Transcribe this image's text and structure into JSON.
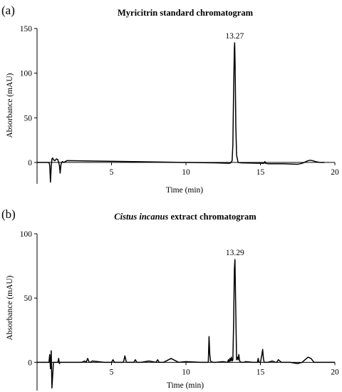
{
  "chart_data": [
    {
      "panel_label": "(a)",
      "type": "line",
      "title": "Myricitrin standard chromatogram",
      "title_italic": "",
      "title_rest": "",
      "xlabel": "Time (min)",
      "ylabel": "Absorbance (mAU)",
      "xlim": [
        0,
        20
      ],
      "ylim": [
        -24,
        150
      ],
      "xticks": [
        5,
        10,
        15,
        20
      ],
      "yticks": [
        0,
        50,
        100,
        150
      ],
      "grid": false,
      "peak_labels": [
        {
          "x": 13.27,
          "y": 134,
          "text": "13.27"
        }
      ],
      "series": [
        {
          "x": [
            0,
            0.5,
            0.7,
            0.8,
            0.85,
            0.9,
            0.95,
            1.0,
            1.05,
            1.1,
            1.2,
            1.3,
            1.4,
            1.5,
            1.55,
            1.6,
            1.65,
            1.7,
            1.8,
            2.0,
            4.0,
            6.0,
            8.0,
            10.0,
            12.0,
            12.9,
            13.0,
            13.1,
            13.15,
            13.2,
            13.25,
            13.27,
            13.3,
            13.35,
            13.4,
            13.5,
            13.7,
            15.0,
            15.25,
            15.3,
            15.35,
            15.5,
            16.5,
            17.5,
            17.8,
            18.0,
            18.2,
            18.35,
            18.5,
            18.7,
            19.0,
            19.3
          ],
          "y": [
            0,
            0,
            0,
            0,
            -3,
            -22,
            -5,
            4,
            5,
            3,
            2,
            4,
            3,
            -3,
            -12,
            -3,
            0,
            1,
            0,
            2,
            1.5,
            1.0,
            0.5,
            0,
            -0.5,
            -1,
            -0.5,
            2,
            20,
            80,
            128,
            134,
            110,
            40,
            8,
            0,
            -0.5,
            -1,
            -1,
            1,
            -1,
            -1.5,
            -1.5,
            -2,
            -1,
            0.5,
            2,
            2.5,
            2,
            1,
            0,
            0
          ]
        }
      ]
    },
    {
      "panel_label": "(b)",
      "type": "line",
      "title": "",
      "title_italic": "Cistus incanus",
      "title_rest": " extract chromatogram",
      "xlabel": "Time (min)",
      "ylabel": "Absorbance (mAU)",
      "xlim": [
        0,
        20
      ],
      "ylim": [
        -22,
        100
      ],
      "xticks": [
        5,
        10,
        15,
        20
      ],
      "yticks": [
        0,
        50,
        100
      ],
      "grid": false,
      "peak_labels": [
        {
          "x": 13.29,
          "y": 80,
          "text": "13.29"
        }
      ],
      "series": [
        {
          "x": [
            0,
            0.6,
            0.8,
            0.85,
            0.9,
            0.95,
            1.0,
            1.1,
            1.3,
            1.4,
            1.45,
            1.5,
            1.55,
            1.7,
            2.0,
            2.5,
            3.0,
            3.2,
            3.3,
            3.4,
            3.5,
            3.6,
            3.7,
            4.5,
            5.0,
            5.1,
            5.2,
            5.5,
            5.8,
            5.9,
            6.0,
            6.3,
            6.5,
            6.6,
            6.7,
            7.0,
            7.5,
            8.0,
            8.1,
            8.2,
            8.5,
            9.0,
            9.5,
            10.0,
            11.0,
            11.5,
            11.55,
            11.6,
            11.65,
            11.7,
            11.8,
            12.0,
            12.5,
            12.8,
            12.85,
            12.9,
            12.95,
            13.0,
            13.05,
            13.1,
            13.15,
            13.2,
            13.25,
            13.29,
            13.33,
            13.4,
            13.45,
            13.5,
            13.55,
            13.6,
            13.7,
            13.9,
            14.0,
            14.5,
            14.8,
            14.85,
            14.9,
            15.0,
            15.1,
            15.15,
            15.2,
            15.25,
            15.3,
            15.35,
            15.4,
            15.5,
            15.8,
            16.0,
            16.1,
            16.2,
            16.4,
            17.0,
            17.5,
            17.8,
            18.0,
            18.2,
            18.4,
            18.6,
            18.8,
            19.0,
            19.5,
            20.0
          ],
          "y": [
            0,
            0,
            0,
            6,
            -5,
            9,
            -20,
            0,
            0,
            0,
            3,
            -1,
            0,
            0,
            0,
            0,
            0,
            1,
            0,
            3,
            0,
            0,
            1,
            0,
            0,
            2,
            0,
            0,
            0,
            5,
            0,
            0,
            0,
            2,
            0,
            0,
            1,
            0,
            2,
            0,
            0,
            3,
            0,
            0.5,
            0,
            0,
            20,
            6,
            1,
            0.5,
            0,
            0,
            0.5,
            0,
            2,
            0,
            3,
            1,
            4,
            1,
            2,
            30,
            72,
            80,
            50,
            2,
            4,
            2,
            6,
            1,
            0,
            0,
            0.5,
            0,
            0,
            3,
            0,
            0,
            6,
            10,
            3,
            0,
            0,
            0,
            0,
            0,
            1,
            0,
            0,
            2,
            0,
            0,
            -1,
            0,
            2,
            4,
            3,
            0,
            0,
            0,
            0,
            0
          ]
        }
      ]
    }
  ]
}
